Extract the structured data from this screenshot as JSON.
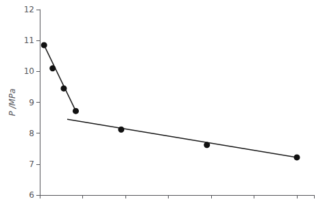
{
  "chart_data": {
    "type": "scatter",
    "ylabel": "P /MPa",
    "xlim": [
      0,
      32
    ],
    "xticks": [
      0,
      5,
      10,
      15,
      20,
      25,
      30
    ],
    "ylim": [
      6,
      12
    ],
    "yticks": [
      6,
      7,
      8,
      9,
      10,
      11,
      12
    ],
    "grid": false,
    "tick_labels": "y",
    "series": [
      {
        "type": "scatter",
        "color": "#111111",
        "marker": "circle",
        "x": [
          0.5,
          1.5,
          2.8,
          4.2,
          9.5,
          19.5,
          30.0
        ],
        "values": [
          10.85,
          10.1,
          9.45,
          8.72,
          8.12,
          7.62,
          7.22
        ]
      },
      {
        "type": "line",
        "color": "#1a1a1a",
        "line_style": "solid",
        "x": [
          0.5,
          4.2
        ],
        "values": [
          10.85,
          8.72
        ]
      },
      {
        "type": "line",
        "color": "#1a1a1a",
        "line_style": "solid",
        "x": [
          3.2,
          30.0
        ],
        "values": [
          8.45,
          7.22
        ]
      }
    ]
  }
}
